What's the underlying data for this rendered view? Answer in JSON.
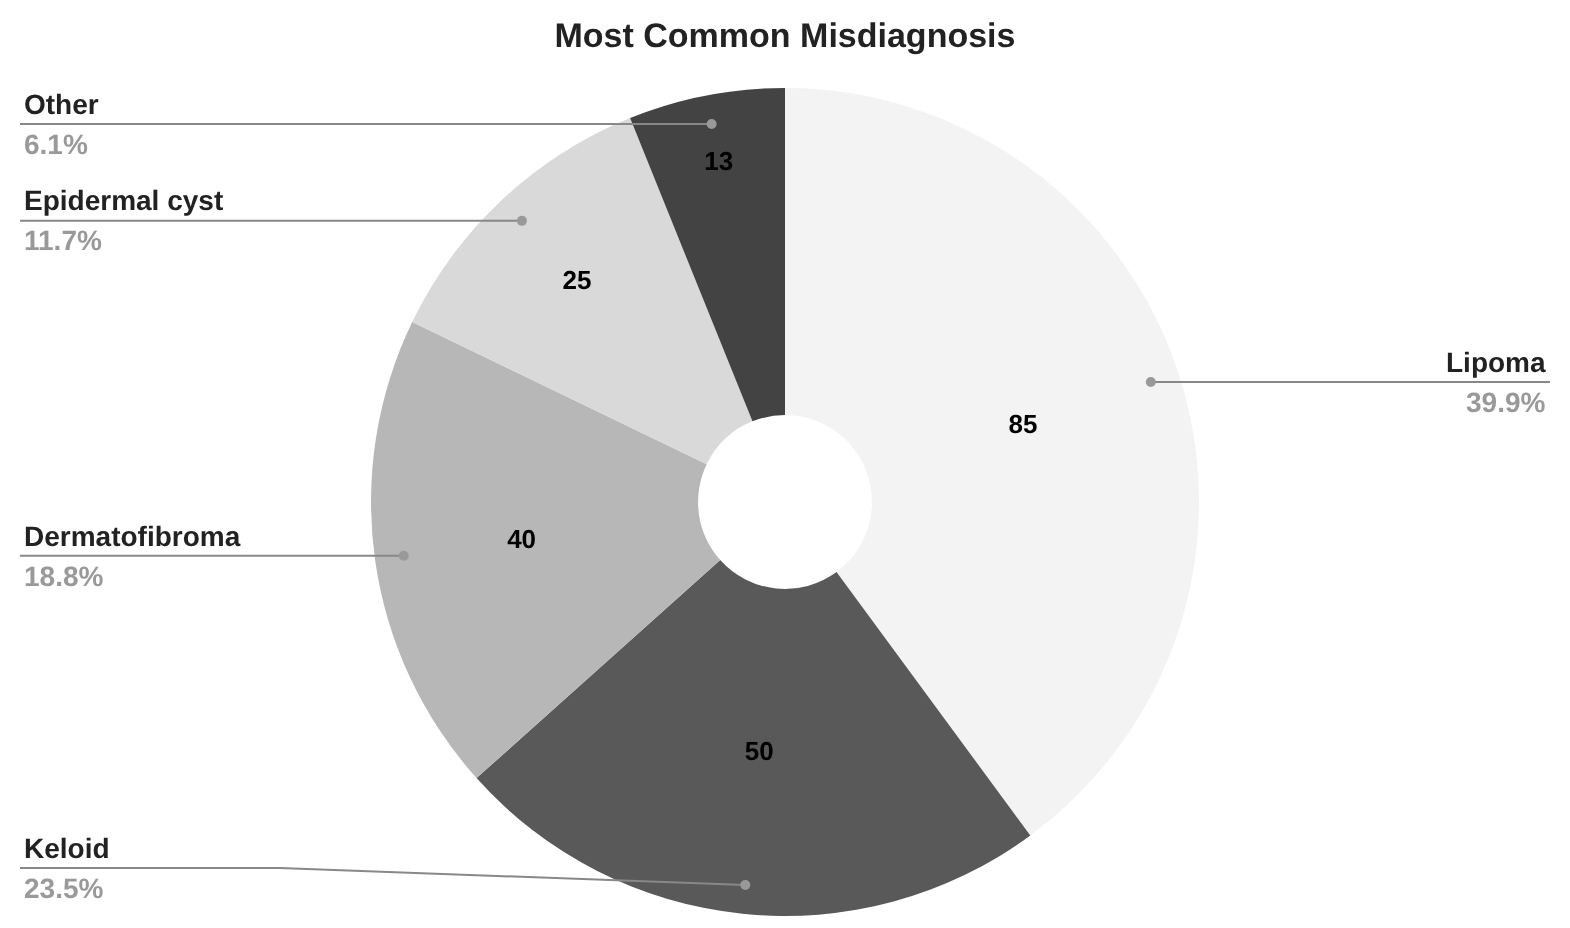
{
  "chart_data": {
    "type": "donut",
    "title": "Most Common Misdiagnosis",
    "categories": [
      "Lipoma",
      "Keloid",
      "Dermatofibroma",
      "Epidermal cyst",
      "Other"
    ],
    "values": [
      85,
      50,
      40,
      25,
      13
    ],
    "colors": [
      "#f3f3f3",
      "#595959",
      "#b7b7b7",
      "#d9d9d9",
      "#434343"
    ],
    "annotations": [
      "39.9%",
      "23.5%",
      "18.8%",
      "11.7%",
      "6.1%"
    ],
    "data_labels": true
  }
}
